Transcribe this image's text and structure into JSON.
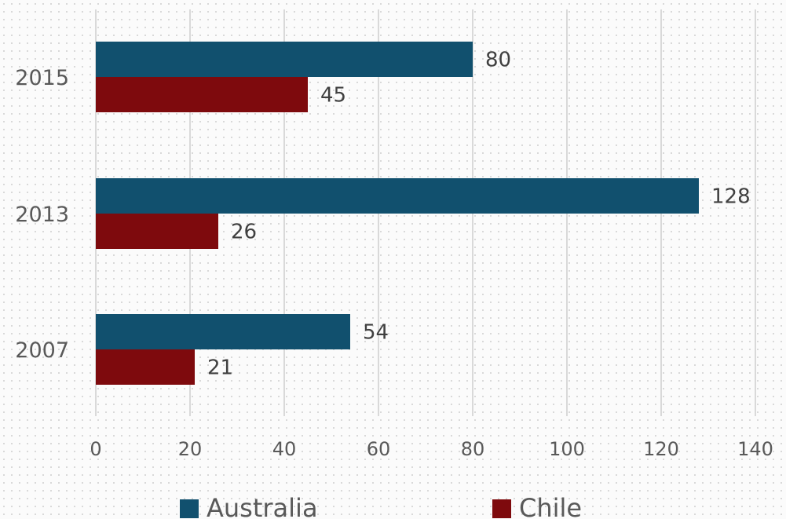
{
  "chart_data": {
    "type": "bar",
    "orientation": "horizontal",
    "title": "",
    "xlabel": "",
    "ylabel": "",
    "categories": [
      "2015",
      "2013",
      "2007"
    ],
    "series": [
      {
        "name": "Australia",
        "color": "#11506e",
        "values": [
          80,
          128,
          54
        ]
      },
      {
        "name": "Chile",
        "color": "#7e0a0d",
        "values": [
          45,
          26,
          21
        ]
      }
    ],
    "xlim": [
      0,
      140
    ],
    "xticks": [
      "0",
      "20",
      "40",
      "60",
      "80",
      "100",
      "120",
      "140"
    ],
    "grid": true,
    "data_labels": true,
    "legend_position": "bottom"
  }
}
